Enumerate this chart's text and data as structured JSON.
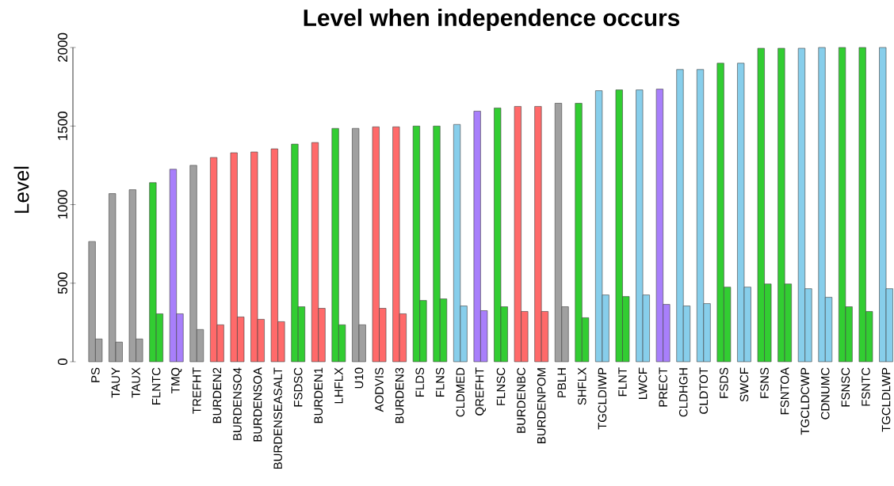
{
  "chart_data": {
    "type": "bar",
    "title": "Level when independence occurs",
    "ylabel": "Level",
    "categories": [
      "PS",
      "TAUY",
      "TAUX",
      "FLNTC",
      "TMQ",
      "TREFHT",
      "BURDEN2",
      "BURDENSO4",
      "BURDENSOA",
      "BURDENSEASALT",
      "FSDSC",
      "BURDEN1",
      "LHFLX",
      "U10",
      "AODVIS",
      "BURDEN3",
      "FLDS",
      "FLNS",
      "CLDMED",
      "QREFHT",
      "FLNSC",
      "BURDENBC",
      "BURDENPOM",
      "PBLH",
      "SHFLX",
      "TGCLDIWP",
      "FLNT",
      "LWCF",
      "PRECT",
      "CLDHGH",
      "CLDTOT",
      "FSDS",
      "SWCF",
      "FSNS",
      "FSNTOA",
      "TGCLDCWP",
      "CDNUMC",
      "FSNSC",
      "FSNTC",
      "TGCLDLWP"
    ],
    "series": [
      {
        "colors": [
          "#a0a0a0",
          "#a0a0a0",
          "#a0a0a0",
          "#32cd32",
          "#a87ffb",
          "#a0a0a0",
          "#ff6a6a",
          "#ff6a6a",
          "#ff6a6a",
          "#ff6a6a",
          "#32cd32",
          "#ff6a6a",
          "#32cd32",
          "#a0a0a0",
          "#ff6a6a",
          "#ff6a6a",
          "#32cd32",
          "#32cd32",
          "#87ceeb",
          "#a87ffb",
          "#32cd32",
          "#ff6a6a",
          "#ff6a6a",
          "#a0a0a0",
          "#32cd32",
          "#87ceeb",
          "#32cd32",
          "#87ceeb",
          "#a87ffb",
          "#87ceeb",
          "#87ceeb",
          "#32cd32",
          "#87ceeb",
          "#32cd32",
          "#32cd32",
          "#87ceeb",
          "#87ceeb",
          "#32cd32",
          "#32cd32",
          "#87ceeb"
        ],
        "values": [
          765,
          1070,
          1095,
          1140,
          1225,
          1250,
          1300,
          1330,
          1335,
          1355,
          1385,
          1395,
          1485,
          1485,
          1495,
          1495,
          1500,
          1500,
          1510,
          1595,
          1615,
          1625,
          1625,
          1645,
          1645,
          1725,
          1730,
          1730,
          1735,
          1860,
          1860,
          1900,
          1900,
          1995,
          1995,
          1995,
          2000,
          2000,
          2000,
          2000
        ]
      },
      {
        "colors": [
          "#a0a0a0",
          "#a0a0a0",
          "#a0a0a0",
          "#32cd32",
          "#a87ffb",
          "#a0a0a0",
          "#ff6a6a",
          "#ff6a6a",
          "#ff6a6a",
          "#ff6a6a",
          "#32cd32",
          "#ff6a6a",
          "#32cd32",
          "#a0a0a0",
          "#ff6a6a",
          "#ff6a6a",
          "#32cd32",
          "#32cd32",
          "#87ceeb",
          "#a87ffb",
          "#32cd32",
          "#ff6a6a",
          "#ff6a6a",
          "#a0a0a0",
          "#32cd32",
          "#87ceeb",
          "#32cd32",
          "#87ceeb",
          "#a87ffb",
          "#87ceeb",
          "#87ceeb",
          "#32cd32",
          "#87ceeb",
          "#32cd32",
          "#32cd32",
          "#87ceeb",
          "#87ceeb",
          "#32cd32",
          "#32cd32",
          "#87ceeb"
        ],
        "values": [
          145,
          125,
          145,
          305,
          305,
          205,
          235,
          285,
          270,
          255,
          350,
          340,
          235,
          235,
          340,
          305,
          390,
          400,
          355,
          325,
          350,
          320,
          320,
          350,
          280,
          425,
          415,
          425,
          365,
          355,
          370,
          475,
          475,
          495,
          495,
          465,
          410,
          350,
          320,
          465
        ]
      }
    ],
    "ylim": [
      0,
      2000
    ],
    "yticks": [
      0,
      500,
      1000,
      1500,
      2000
    ]
  }
}
